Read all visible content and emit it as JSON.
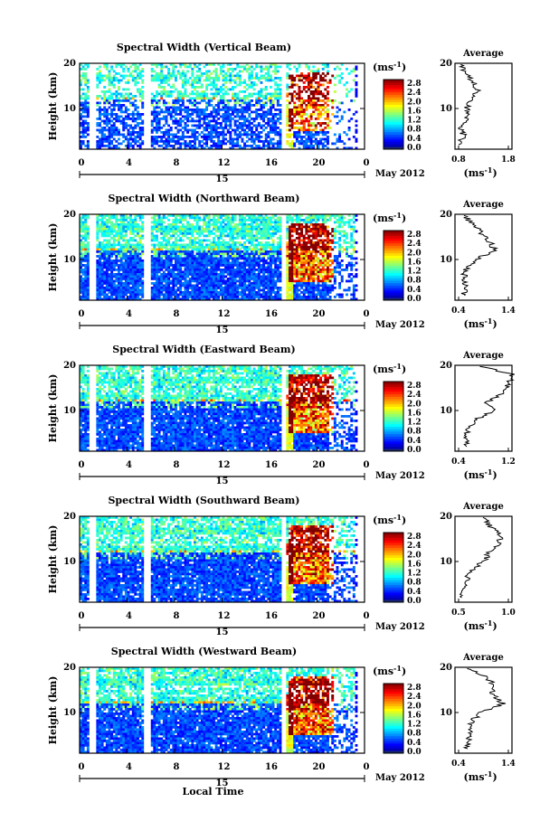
{
  "figure": {
    "colorbar_unit": "(ms",
    "colorbar_unit_sup": "-1",
    "colorbar_unit_close": ")",
    "avg_xunit": "(ms",
    "avg_xunit_sup": "-1",
    "avg_xunit_close": ")",
    "date_label": "May 2012",
    "day_label": "15",
    "xlabel_bottom": "Local Time",
    "ylabel": "Height (km)",
    "avg_title": "Average",
    "colorbar_ticks": [
      "0.0",
      "0.4",
      "0.8",
      "1.2",
      "1.6",
      "2.0",
      "2.4",
      "2.8"
    ],
    "time_ticks": [
      "0",
      "4",
      "8",
      "12",
      "16",
      "20",
      "0"
    ],
    "height_ticks": [
      "10",
      "20"
    ],
    "colors": {
      "low": "#1a3cff",
      "mid": "#2ec8f0",
      "high": "#f03010",
      "axis": "#000000"
    }
  },
  "chart_data": [
    {
      "type": "heatmap",
      "title": "Spectral Width (Vertical Beam)",
      "xlabel": "Local Time",
      "ylabel": "Height (km)",
      "xlim": [
        0,
        24
      ],
      "ylim": [
        1,
        20
      ],
      "clim": [
        0.0,
        2.8
      ],
      "avg_profile": {
        "title": "Average",
        "xticks": [
          "0.8",
          "1.8"
        ],
        "xlim": [
          0.8,
          1.8
        ],
        "ylim": [
          1,
          20
        ],
        "height": [
          2,
          4,
          6,
          8,
          10,
          12,
          14,
          16,
          18,
          20
        ],
        "width": [
          0.85,
          0.95,
          0.9,
          1.0,
          1.0,
          1.05,
          1.2,
          1.1,
          0.95,
          0.9
        ]
      }
    },
    {
      "type": "heatmap",
      "title": "Spectral Width (Northward Beam)",
      "xlabel": "Local Time",
      "ylabel": "Height (km)",
      "xlim": [
        0,
        24
      ],
      "ylim": [
        1,
        20
      ],
      "clim": [
        0.0,
        2.8
      ],
      "avg_profile": {
        "title": "Average",
        "xticks": [
          "0.4",
          "1.4"
        ],
        "xlim": [
          0.4,
          1.4
        ],
        "ylim": [
          1,
          20
        ],
        "height": [
          2,
          4,
          6,
          8,
          10,
          12,
          14,
          16,
          18,
          20
        ],
        "width": [
          0.55,
          0.6,
          0.55,
          0.6,
          0.75,
          1.1,
          1.0,
          0.85,
          0.7,
          0.55
        ]
      }
    },
    {
      "type": "heatmap",
      "title": "Spectral Width (Eastward Beam)",
      "xlabel": "Local Time",
      "ylabel": "Height (km)",
      "xlim": [
        0,
        24
      ],
      "ylim": [
        1,
        20
      ],
      "clim": [
        0.0,
        2.8
      ],
      "avg_profile": {
        "title": "Average",
        "xticks": [
          "0.4",
          "1.2"
        ],
        "xlim": [
          0.4,
          1.2
        ],
        "ylim": [
          1,
          20
        ],
        "height": [
          2,
          4,
          6,
          8,
          10,
          12,
          14,
          16,
          18,
          20
        ],
        "width": [
          0.55,
          0.55,
          0.6,
          0.7,
          0.95,
          0.85,
          1.1,
          1.15,
          1.2,
          0.7
        ]
      }
    },
    {
      "type": "heatmap",
      "title": "Spectral Width (Southward Beam)",
      "xlabel": "Local Time",
      "ylabel": "Height (km)",
      "xlim": [
        0,
        24
      ],
      "ylim": [
        1,
        20
      ],
      "clim": [
        0.0,
        2.8
      ],
      "avg_profile": {
        "title": "Average",
        "xticks": [
          "0.5",
          "1.0"
        ],
        "xlim": [
          0.5,
          1.0
        ],
        "ylim": [
          1,
          20
        ],
        "height": [
          2,
          4,
          6,
          8,
          10,
          12,
          14,
          16,
          18,
          20
        ],
        "width": [
          0.55,
          0.6,
          0.6,
          0.65,
          0.75,
          0.8,
          0.9,
          0.88,
          0.8,
          0.75
        ]
      }
    },
    {
      "type": "heatmap",
      "title": "Spectral Width (Westward Beam)",
      "xlabel": "Local Time",
      "ylabel": "Height (km)",
      "xlim": [
        0,
        24
      ],
      "ylim": [
        1,
        20
      ],
      "clim": [
        0.0,
        2.8
      ],
      "avg_profile": {
        "title": "Average",
        "xticks": [
          "0.4",
          "1.4"
        ],
        "xlim": [
          0.4,
          1.4
        ],
        "ylim": [
          1,
          20
        ],
        "height": [
          2,
          4,
          6,
          8,
          10,
          12,
          14,
          16,
          18,
          20
        ],
        "width": [
          0.6,
          0.65,
          0.65,
          0.7,
          0.85,
          1.25,
          1.05,
          1.1,
          0.9,
          0.6
        ]
      }
    }
  ]
}
